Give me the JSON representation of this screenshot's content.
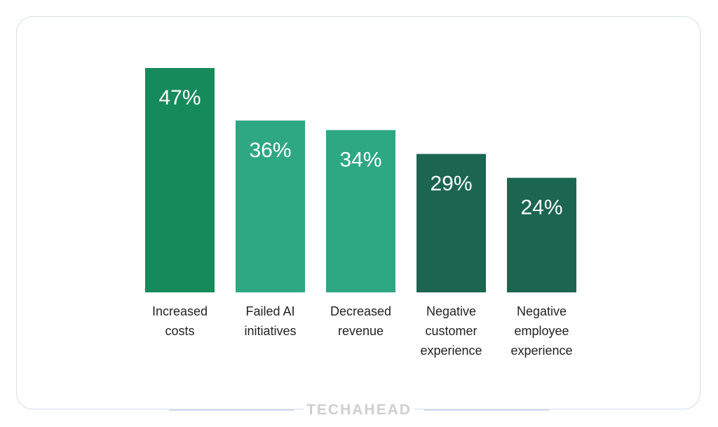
{
  "chart_data": {
    "type": "bar",
    "title": "",
    "xlabel": "",
    "ylabel": "",
    "ylim": [
      0,
      47
    ],
    "grid": false,
    "categories": [
      [
        "Increased",
        "costs"
      ],
      [
        "Failed AI",
        "initiatives"
      ],
      [
        "Decreased",
        "revenue"
      ],
      [
        "Negative",
        "customer",
        "experience"
      ],
      [
        "Negative",
        "employee",
        "experience"
      ]
    ],
    "values": [
      47,
      36,
      34,
      29,
      24
    ],
    "value_labels": [
      "47%",
      "36%",
      "34%",
      "29%",
      "24%"
    ],
    "colors": [
      "#178a5b",
      "#2ea783",
      "#2ea783",
      "#1c6651",
      "#1c6651"
    ]
  },
  "brand": {
    "name": "TECHAHEAD"
  }
}
